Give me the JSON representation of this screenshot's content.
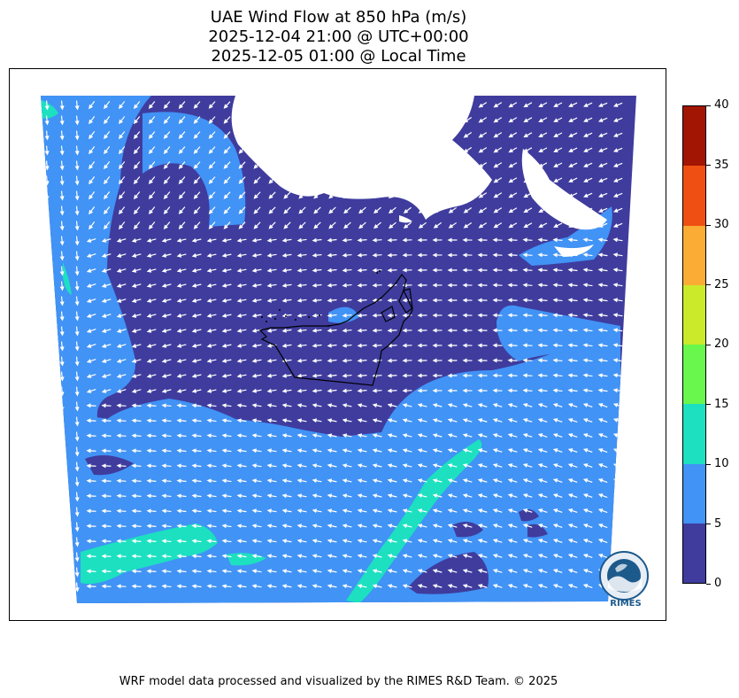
{
  "title": {
    "line1": "UAE Wind Flow at 850 hPa (m/s)",
    "line2": "2025-12-04 21:00 @ UTC+00:00",
    "line3": "2025-12-05 01:00 @ Local Time"
  },
  "colorbar": {
    "ticks": [
      "0",
      "5",
      "10",
      "15",
      "20",
      "25",
      "30",
      "35",
      "40"
    ],
    "colors": [
      "#3f3c9e",
      "#4193f5",
      "#1ce0c0",
      "#69f64d",
      "#cbea2a",
      "#fbac34",
      "#ef4f12",
      "#a21503"
    ]
  },
  "map": {
    "background_color": "#3f3c9e",
    "arrow_color": "#ffffff",
    "border_color": "#000000"
  },
  "logo": {
    "text": "RIMES"
  },
  "footer": "WRF model data processed and visualized by the RIMES R&D Team. © 2025"
}
